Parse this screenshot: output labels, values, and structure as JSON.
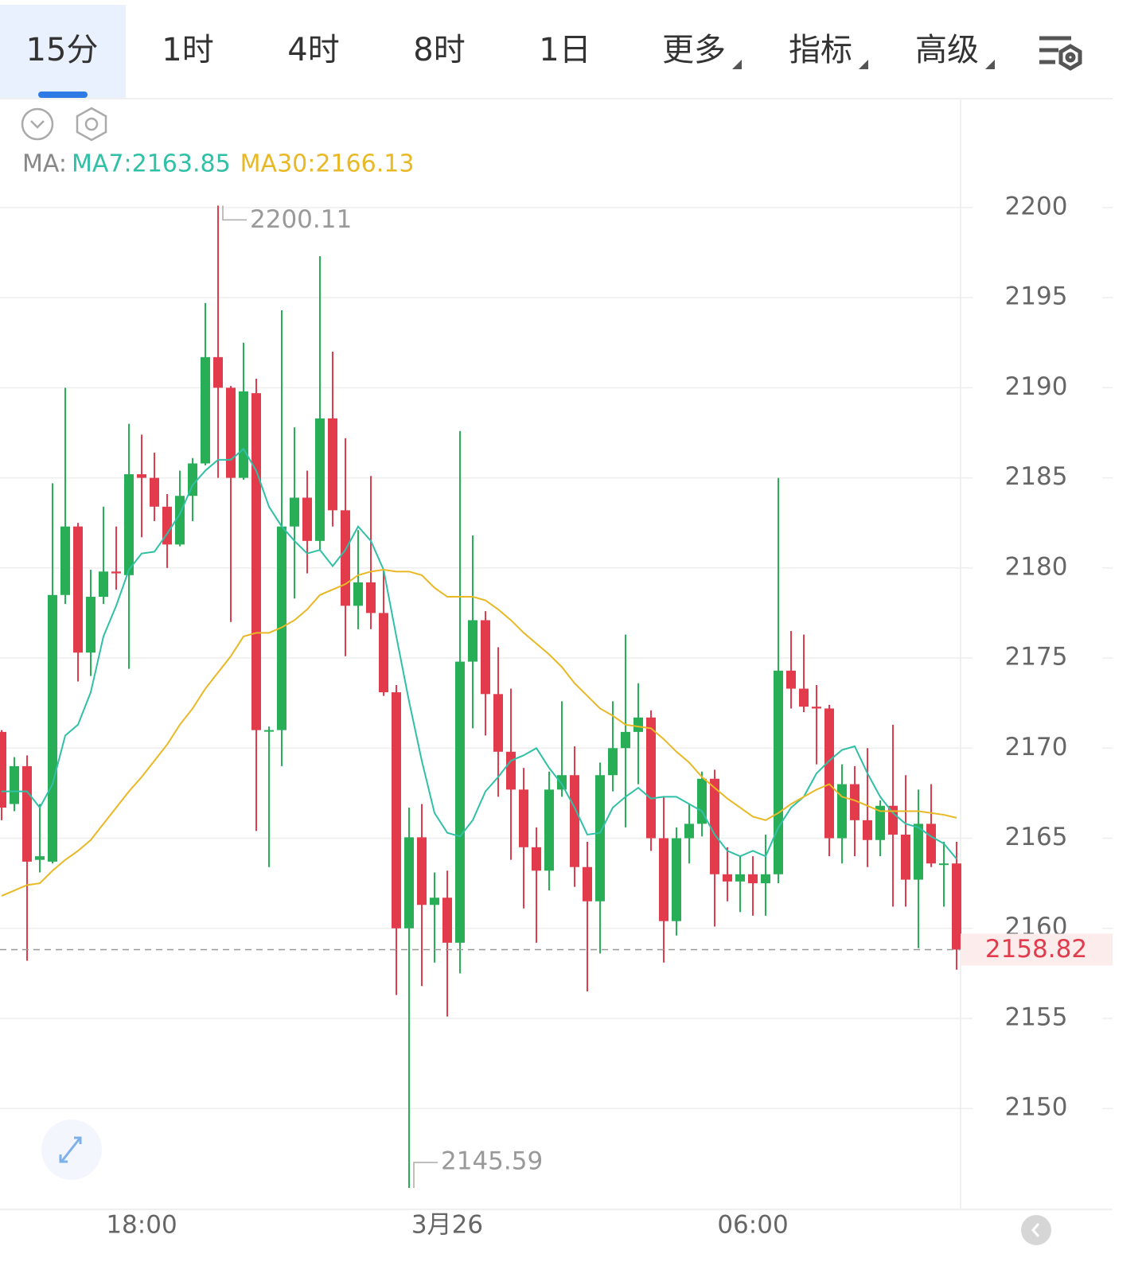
{
  "tabs": [
    "15分",
    "1时",
    "4时",
    "8时",
    "1日",
    "更多",
    "指标",
    "高级"
  ],
  "active_tab": 0,
  "chart_data": {
    "type": "candlestick",
    "indicator_label": "MA:",
    "categories": [
      null,
      null,
      null,
      null,
      null,
      null,
      null,
      null,
      null,
      null,
      null,
      "18:00",
      null,
      null,
      null,
      null,
      null,
      null,
      null,
      null,
      null,
      null,
      null,
      null,
      null,
      null,
      null,
      null,
      null,
      null,
      null,
      null,
      null,
      null,
      null,
      "3月26",
      null,
      null,
      null,
      null,
      null,
      null,
      null,
      null,
      null,
      null,
      null,
      null,
      null,
      null,
      null,
      null,
      null,
      null,
      null,
      null,
      null,
      null,
      null,
      "06:00",
      null,
      null,
      null,
      null,
      null,
      null,
      null,
      null,
      null,
      null,
      null,
      null,
      null,
      null,
      null,
      null
    ],
    "open": [
      2170.9,
      2166.9,
      2169,
      2163.8,
      2163.7,
      2178.5,
      2182.3,
      2175.3,
      2178.4,
      2179.8,
      2179.6,
      2185.2,
      2185,
      2183.4,
      2181.3,
      2184,
      2185.8,
      2191.7,
      2190,
      2185,
      2189.7,
      2171,
      2171,
      2182.3,
      2183.9,
      2181.5,
      2188.3,
      2183.2,
      2177.9,
      2179.2,
      2177.5,
      2173.1,
      2160,
      2165.05,
      2161.3,
      2161.7,
      2159.2,
      2174.8,
      2177.1,
      2173,
      2169.8,
      2167.7,
      2164.5,
      2163.2,
      2167.7,
      2168.5,
      2163.4,
      2161.5,
      2168.5,
      2170,
      2170.9,
      2171.7,
      2165,
      2160.4,
      2165,
      2165.8,
      2168.3,
      2163,
      2162.6,
      2163,
      2162.5,
      2163,
      2174.3,
      2173.3,
      2172.3,
      2172.2,
      2165,
      2168,
      2166,
      2164.9,
      2166.8,
      2165.2,
      2162.7,
      2165.8,
      2163.6,
      2163.6
    ],
    "high": [
      2171,
      2169.5,
      2169.6,
      2166.9,
      2184.7,
      2190,
      2182.5,
      2179.9,
      2183.4,
      2182.3,
      2188,
      2187.4,
      2186.4,
      2184.1,
      2185.4,
      2186.1,
      2194.7,
      2200.11,
      2190.1,
      2192.5,
      2190.5,
      2171.2,
      2194.3,
      2187.8,
      2185.4,
      2197.3,
      2192,
      2187.2,
      2182.1,
      2185.1,
      2179.9,
      2173.5,
      2166.7,
      2166.9,
      2163.1,
      2163.2,
      2187.6,
      2181.8,
      2177.6,
      2175.6,
      2173.3,
      2168.9,
      2165.6,
      2168.7,
      2172.6,
      2170.1,
      2164.8,
      2169.2,
      2172.6,
      2176.3,
      2173.6,
      2172.1,
      2167.3,
      2165.6,
      2166.9,
      2168.7,
      2168.8,
      2164.5,
      2164,
      2164,
      2165.2,
      2185,
      2176.5,
      2176.3,
      2173.5,
      2172.4,
      2169.1,
      2169,
      2170,
      2167.1,
      2171.3,
      2168.5,
      2167.7,
      2168,
      2164.8,
      2164.8
    ],
    "low": [
      2166,
      2166.5,
      2158.2,
      2163.1,
      2163.6,
      2178,
      2173.7,
      2174,
      2178,
      2178.8,
      2174.4,
      2181.7,
      2182.6,
      2180,
      2181.2,
      2182.6,
      2185.7,
      2185,
      2177,
      2184.9,
      2165.4,
      2163.4,
      2169,
      2178.3,
      2179.7,
      2181,
      2182.3,
      2175.1,
      2176.6,
      2176.6,
      2172.9,
      2156.3,
      2145.59,
      2156.8,
      2158.1,
      2155.1,
      2157.5,
      2171.1,
      2170.7,
      2167.3,
      2163.8,
      2161.1,
      2159.2,
      2162.1,
      2167.3,
      2162.3,
      2156.5,
      2158.6,
      2167.6,
      2165.6,
      2168,
      2164.3,
      2158.1,
      2159.6,
      2163.6,
      2165.1,
      2160.1,
      2161.5,
      2160.9,
      2160.7,
      2160.7,
      2162.5,
      2172.2,
      2172,
      2169.1,
      2164,
      2163.6,
      2164,
      2163.4,
      2164,
      2161.2,
      2161.2,
      2158.9,
      2163.4,
      2161.2,
      2157.7
    ],
    "close": [
      2166.7,
      2169,
      2163.7,
      2164,
      2178.5,
      2182.3,
      2175.3,
      2178.4,
      2179.8,
      2179.7,
      2185.2,
      2185,
      2183.4,
      2181.3,
      2184,
      2185.8,
      2191.7,
      2190,
      2185,
      2189.8,
      2171,
      2171,
      2182.3,
      2183.9,
      2181.5,
      2188.3,
      2183.2,
      2177.9,
      2179.2,
      2177.5,
      2173.1,
      2160,
      2165.05,
      2161.3,
      2161.7,
      2159.2,
      2174.8,
      2177.1,
      2173,
      2169.8,
      2167.7,
      2164.5,
      2163.2,
      2167.7,
      2168.5,
      2163.4,
      2161.5,
      2168.5,
      2170,
      2170.9,
      2171.7,
      2165,
      2160.4,
      2165,
      2165.8,
      2168.3,
      2163,
      2162.6,
      2163,
      2162.5,
      2163,
      2174.3,
      2173.3,
      2172.3,
      2172.2,
      2165,
      2168,
      2166,
      2164.9,
      2166.8,
      2165.2,
      2162.7,
      2165.8,
      2163.6,
      2163.6,
      2158.82
    ],
    "up_color": "#27ae57",
    "down_color": "#e23b4c",
    "series": [
      {
        "name": "MA7:2163.85",
        "color": "#2fc0a6",
        "values": [
          2167.6,
          2167.6,
          2167.6,
          2166.7,
          2168,
          2170.7,
          2171.3,
          2173.1,
          2176.2,
          2177.9,
          2179.9,
          2180.8,
          2180.9,
          2181.9,
          2183,
          2184.6,
          2185.4,
          2186,
          2186,
          2186.6,
          2185.4,
          2183.4,
          2182.3,
          2181.5,
          2180.8,
          2181,
          2180.1,
          2181,
          2182.3,
          2181.5,
          2179.9,
          2176.2,
          2172.6,
          2169.3,
          2166.4,
          2165.3,
          2165.1,
          2166,
          2167.6,
          2168.4,
          2169.3,
          2169.6,
          2170,
          2168.9,
          2168,
          2166.7,
          2165.2,
          2165.3,
          2166.7,
          2167.3,
          2167.8,
          2167.2,
          2167.3,
          2167.3,
          2166.9,
          2166.5,
          2165.2,
          2164.3,
          2164,
          2164.3,
          2164,
          2165.6,
          2166.7,
          2167.3,
          2168.6,
          2169.3,
          2169.9,
          2170.1,
          2168.6,
          2167.3,
          2166.4,
          2165.8,
          2165.6,
          2165.1,
          2164.7,
          2163.85
        ]
      },
      {
        "name": "MA30:2166.13",
        "color": "#e9b825",
        "values": [
          2161.8,
          2162.1,
          2162.4,
          2162.5,
          2163.2,
          2163.8,
          2164.3,
          2164.9,
          2165.8,
          2166.7,
          2167.6,
          2168.4,
          2169.3,
          2170.2,
          2171.3,
          2172.2,
          2173.3,
          2174.2,
          2175.1,
          2176.2,
          2176.4,
          2176.4,
          2176.7,
          2177.1,
          2177.7,
          2178.5,
          2178.8,
          2179.1,
          2179.6,
          2179.8,
          2179.9,
          2179.8,
          2179.8,
          2179.6,
          2178.9,
          2178.4,
          2178.4,
          2178.4,
          2178.2,
          2177.7,
          2177.1,
          2176.4,
          2175.8,
          2175.2,
          2174.5,
          2173.6,
          2172.9,
          2172.2,
          2171.8,
          2171.3,
          2171.2,
          2171.1,
          2170.5,
          2169.8,
          2169.2,
          2168.4,
          2167.8,
          2167.2,
          2166.7,
          2166.2,
          2166,
          2166.4,
          2166.9,
          2167.3,
          2167.7,
          2168,
          2167.3,
          2167.1,
          2166.8,
          2166.5,
          2166.5,
          2166.5,
          2166.5,
          2166.4,
          2166.3,
          2166.13
        ]
      }
    ],
    "ylim": [
      2144.4,
      2206
    ],
    "yticks": [
      2150,
      2155,
      2160,
      2165,
      2170,
      2175,
      2180,
      2185,
      2190,
      2195,
      2200
    ],
    "grid": true
  }
}
